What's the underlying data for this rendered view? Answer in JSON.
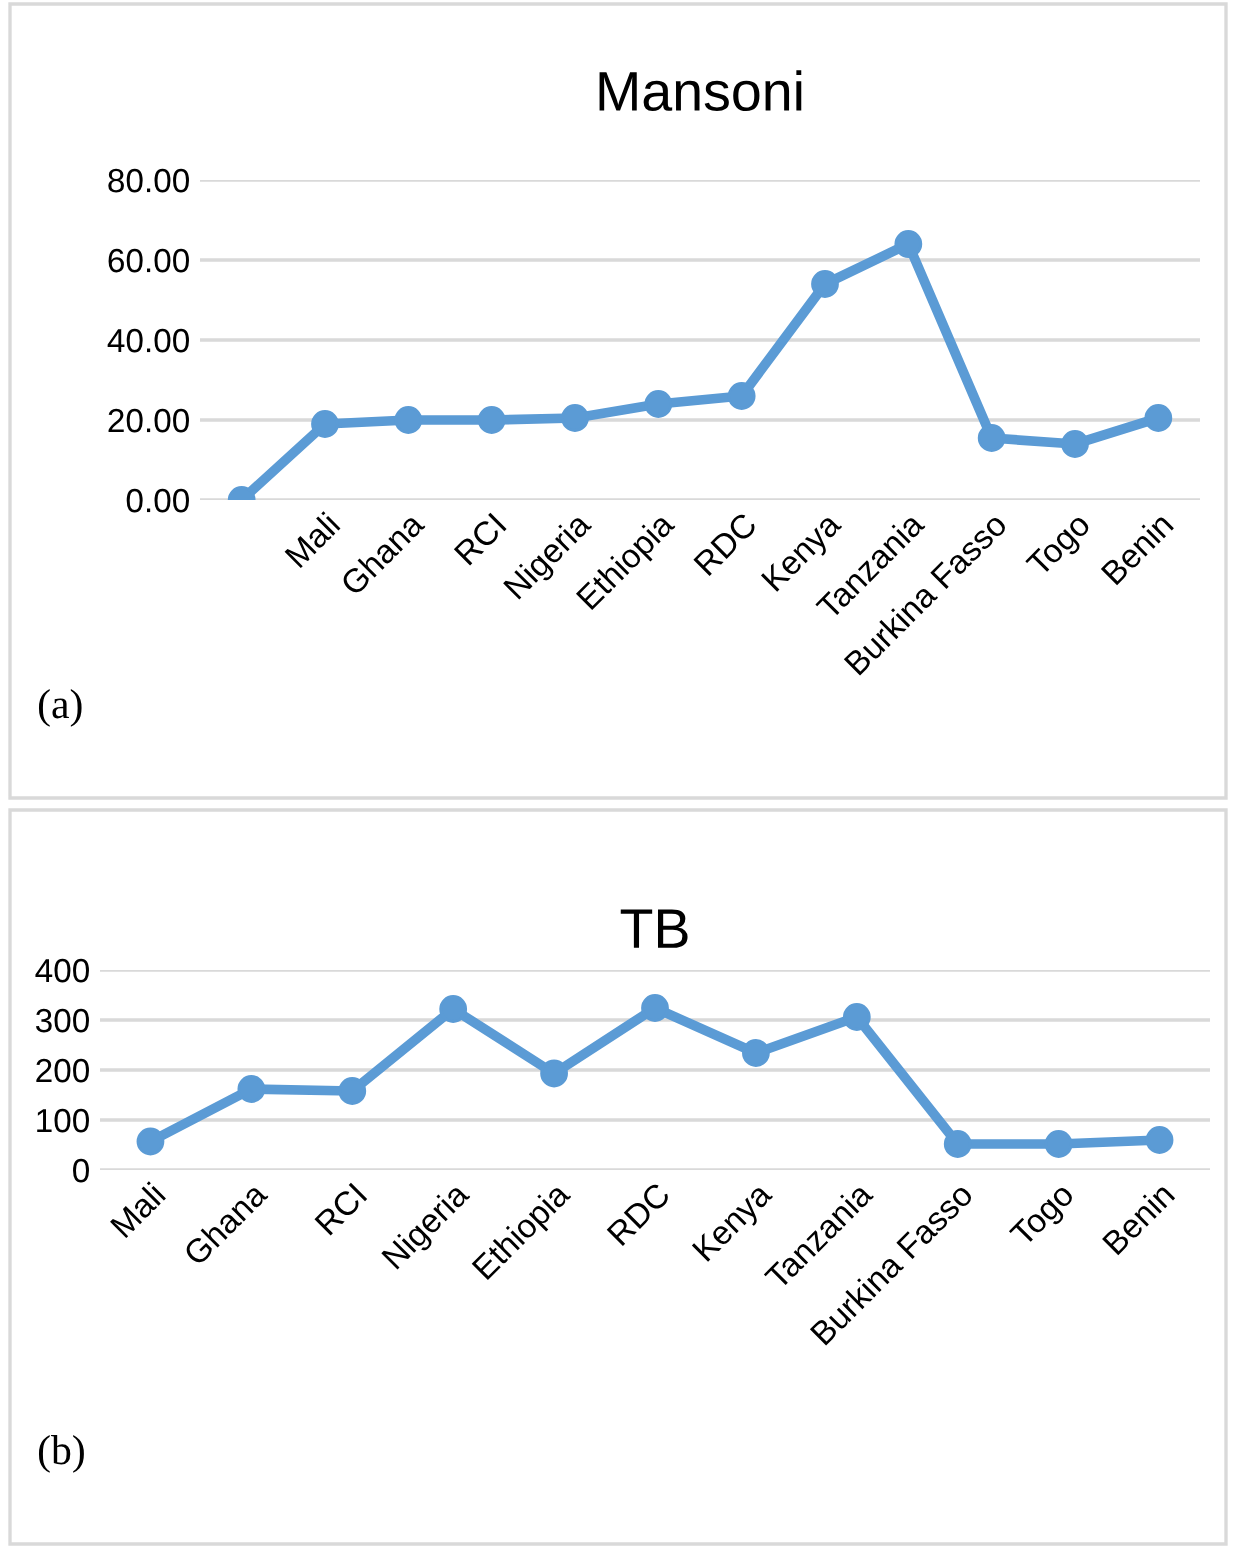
{
  "chart_data": [
    {
      "type": "line",
      "title": "Mansoni",
      "categories": [
        null,
        "Mali",
        "Ghana",
        "RCI",
        "Nigeria",
        "Ethiopia",
        "RDC",
        "Kenya",
        "Tanzania",
        "Burkina Fasso",
        "Togo",
        "Benin"
      ],
      "series": [
        {
          "color": "#5b9bd5",
          "values": [
            0,
            19,
            20,
            20,
            20.5,
            24,
            26,
            54,
            64,
            15.5,
            14,
            20.5
          ]
        }
      ],
      "ylim": [
        0,
        80
      ],
      "yticks": [
        {
          "value": 0,
          "label": "0.00"
        },
        {
          "value": 20,
          "label": "20.00"
        },
        {
          "value": 40,
          "label": "40.00"
        },
        {
          "value": 60,
          "label": "60.00"
        },
        {
          "value": 80,
          "label": "80.00"
        }
      ],
      "grid": "y",
      "marker": "circle",
      "line_style": "solid",
      "annotations": [
        "(a)"
      ]
    },
    {
      "type": "line",
      "title": "TB",
      "categories": [
        "Mali",
        "Ghana",
        "RCI",
        "Nigeria",
        "Ethiopia",
        "RDC",
        "Kenya",
        "Tanzania",
        "Burkina Fasso",
        "Togo",
        "Benin"
      ],
      "series": [
        {
          "color": "#5b9bd5",
          "values": [
            57,
            162,
            158,
            322,
            193,
            324,
            234,
            306,
            52,
            52,
            60
          ]
        }
      ],
      "ylim": [
        0,
        400
      ],
      "yticks": [
        0,
        100,
        200,
        300,
        400
      ],
      "grid": "y",
      "marker": "circle",
      "line_style": "solid",
      "annotations": [
        "(b)"
      ]
    }
  ]
}
